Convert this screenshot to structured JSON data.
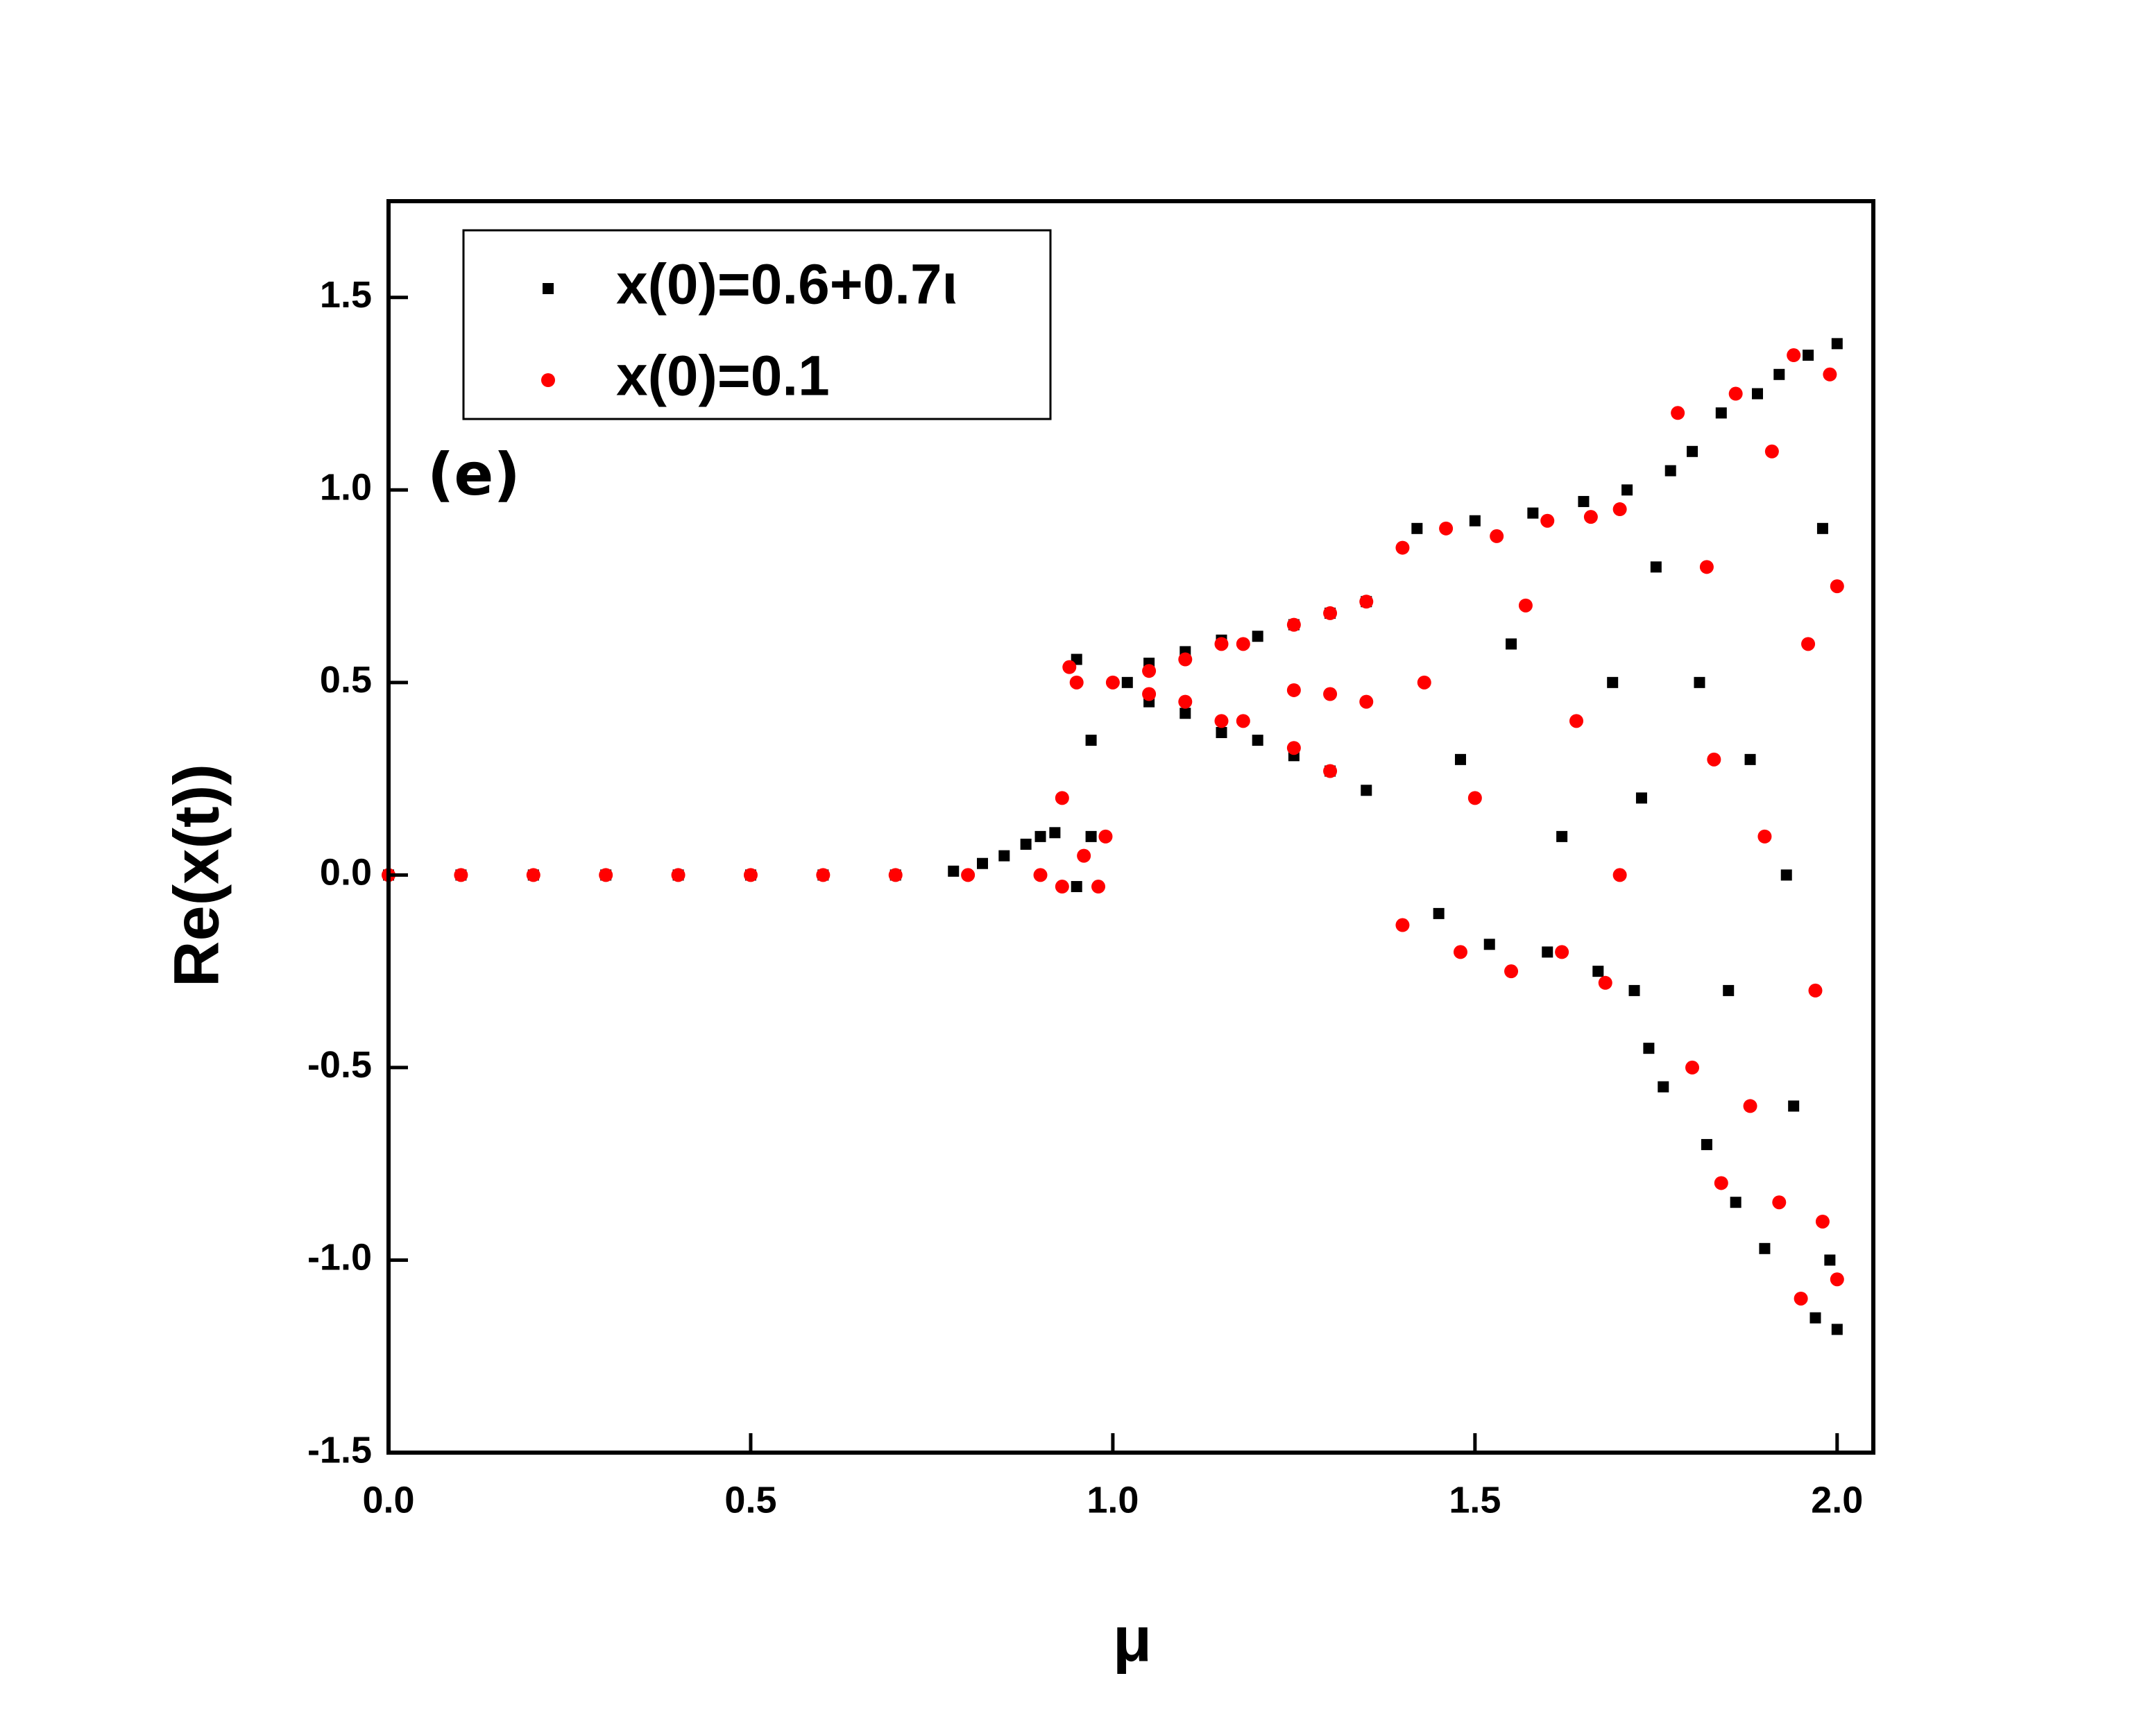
{
  "chart_data": {
    "type": "scatter",
    "annotation": "(e)",
    "x_label": "μ",
    "y_label": "Re(x(t))",
    "xlim": [
      0,
      2.05
    ],
    "ylim": [
      -1.5,
      1.75
    ],
    "xticks": [
      {
        "value": 0,
        "label": "0.0"
      },
      {
        "value": 0.5,
        "label": "0.5"
      },
      {
        "value": 1,
        "label": "1.0"
      },
      {
        "value": 1.5,
        "label": "1.5"
      },
      {
        "value": 2,
        "label": "2.0"
      }
    ],
    "yticks": [
      {
        "value": -1.5,
        "label": "-1.5"
      },
      {
        "value": -1,
        "label": "-1.0"
      },
      {
        "value": -0.5,
        "label": "-0.5"
      },
      {
        "value": 0,
        "label": "0.0"
      },
      {
        "value": 0.5,
        "label": "0.5"
      },
      {
        "value": 1,
        "label": "1.0"
      },
      {
        "value": 1.5,
        "label": "1.5"
      }
    ],
    "grid": false,
    "legend": "upper left",
    "series": [
      {
        "name": "x(0)=0.6+0.7ι",
        "color": "#000000",
        "marker": "square",
        "x": [
          0,
          0.1,
          0.2,
          0.3,
          0.4,
          0.5,
          0.6,
          0.7,
          0.78,
          0.82,
          0.85,
          0.88,
          0.9,
          0.92,
          0.95,
          0.95,
          0.97,
          0.97,
          1.02,
          1.05,
          1.05,
          1.1,
          1.1,
          1.15,
          1.15,
          1.2,
          1.2,
          1.25,
          1.25,
          1.3,
          1.3,
          1.35,
          1.35,
          1.42,
          1.45,
          1.48,
          1.5,
          1.52,
          1.55,
          1.58,
          1.6,
          1.62,
          1.65,
          1.67,
          1.69,
          1.71,
          1.72,
          1.73,
          1.74,
          1.75,
          1.76,
          1.77,
          1.8,
          1.82,
          1.84,
          1.86,
          1.88,
          1.9,
          1.92,
          1.94,
          1.96,
          1.97,
          1.98,
          1.99,
          2.0,
          2.0,
          1.85,
          1.93,
          1.81,
          1.89
        ],
        "values": [
          0,
          0,
          0,
          0,
          0,
          0,
          0,
          0,
          0.01,
          0.03,
          0.05,
          0.08,
          0.1,
          0.11,
          0.56,
          -0.03,
          0.35,
          0.1,
          0.5,
          0.55,
          0.45,
          0.58,
          0.42,
          0.61,
          0.37,
          0.62,
          0.35,
          0.65,
          0.31,
          0.68,
          0.27,
          0.71,
          0.22,
          0.9,
          -0.1,
          0.3,
          0.92,
          -0.18,
          0.6,
          0.94,
          -0.2,
          0.1,
          0.97,
          -0.25,
          0.5,
          1.0,
          -0.3,
          0.2,
          -0.45,
          0.8,
          -0.55,
          1.05,
          1.1,
          -0.7,
          1.2,
          -0.85,
          0.3,
          -0.97,
          1.3,
          -0.6,
          1.35,
          -1.15,
          0.9,
          -1.0,
          1.38,
          -1.18,
          -0.3,
          0.0,
          0.5,
          1.25
        ]
      },
      {
        "name": "x(0)=0.1",
        "color": "#ff0000",
        "marker": "circle",
        "x": [
          0,
          0.1,
          0.2,
          0.3,
          0.4,
          0.5,
          0.6,
          0.7,
          0.8,
          0.9,
          0.93,
          0.93,
          0.94,
          0.95,
          0.96,
          0.98,
          0.99,
          1.0,
          1.05,
          1.05,
          1.1,
          1.1,
          1.15,
          1.15,
          1.18,
          1.18,
          1.25,
          1.3,
          1.35,
          1.25,
          1.3,
          1.35,
          1.25,
          1.3,
          1.4,
          1.4,
          1.43,
          1.46,
          1.48,
          1.5,
          1.53,
          1.55,
          1.57,
          1.6,
          1.62,
          1.64,
          1.66,
          1.68,
          1.7,
          1.7,
          1.78,
          1.8,
          1.82,
          1.84,
          1.86,
          1.88,
          1.9,
          1.92,
          1.94,
          1.95,
          1.96,
          1.98,
          1.99,
          2.0,
          2.0,
          1.83,
          1.91,
          1.97
        ],
        "values": [
          0,
          0,
          0,
          0,
          0,
          0,
          0,
          0,
          0,
          0,
          0.2,
          -0.03,
          0.54,
          0.5,
          0.05,
          -0.03,
          0.1,
          0.5,
          0.53,
          0.47,
          0.56,
          0.45,
          0.6,
          0.4,
          0.6,
          0.4,
          0.65,
          0.68,
          0.71,
          0.48,
          0.47,
          0.45,
          0.33,
          0.27,
          0.85,
          -0.13,
          0.5,
          0.9,
          -0.2,
          0.2,
          0.88,
          -0.25,
          0.7,
          0.92,
          -0.2,
          0.4,
          0.93,
          -0.28,
          0.95,
          0.0,
          1.2,
          -0.5,
          0.8,
          -0.8,
          1.25,
          -0.6,
          0.1,
          -0.85,
          1.35,
          -1.1,
          0.6,
          -0.9,
          1.3,
          -1.05,
          0.75,
          0.3,
          1.1,
          -0.3
        ]
      }
    ]
  }
}
